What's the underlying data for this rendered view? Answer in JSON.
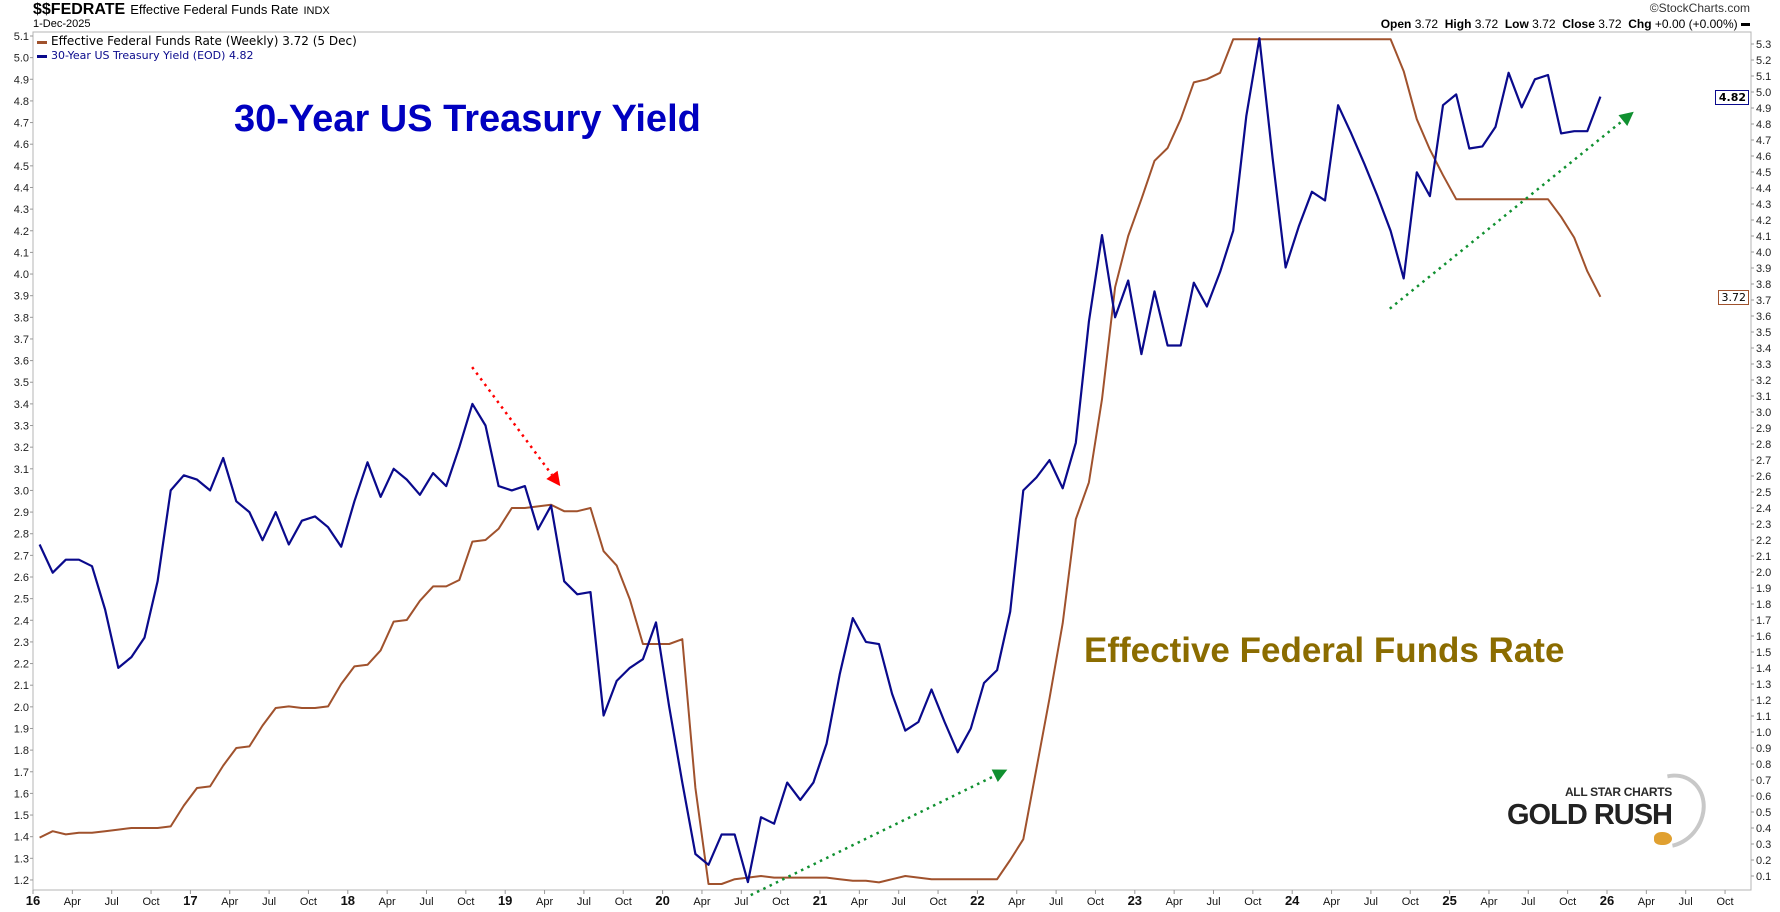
{
  "header": {
    "symbol": "$$FEDRATE",
    "name": "Effective Federal Funds Rate",
    "exchange": "INDX",
    "date": "1-Dec-2025",
    "copyright": "©StockCharts.com",
    "ohlc": {
      "open_label": "Open",
      "open": "3.72",
      "high_label": "High",
      "high": "3.72",
      "low_label": "Low",
      "low": "3.72",
      "close_label": "Close",
      "close": "3.72",
      "chg_label": "Chg",
      "chg": "+0.00 (+0.00%)"
    }
  },
  "legend": [
    {
      "label": "Effective Federal Funds Rate (Weekly) 3.72 (5 Dec)",
      "color": "#a0522d"
    },
    {
      "label": "30-Year US Treasury Yield (EOD) 4.82",
      "color": "#0a0a8c"
    }
  ],
  "markers": {
    "yield_last": "4.82",
    "fed_last": "3.72"
  },
  "annotations": {
    "title": "30-Year US Treasury Yield",
    "fed_label": "Effective Federal Funds Rate"
  },
  "logo": {
    "line1": "ALL STAR CHARTS",
    "line2": "GOLD RUSH"
  },
  "chart_data": {
    "type": "line",
    "x_start": "2016-01",
    "x_step": "month",
    "x_range": [
      2016.0,
      2026.83
    ],
    "x_tick_labels": [
      "16",
      "Apr",
      "Jul",
      "Oct",
      "17",
      "Apr",
      "Jul",
      "Oct",
      "18",
      "Apr",
      "Jul",
      "Oct",
      "19",
      "Apr",
      "Jul",
      "Oct",
      "20",
      "Apr",
      "Jul",
      "Oct",
      "21",
      "Apr",
      "Jul",
      "Oct",
      "22",
      "Apr",
      "Jul",
      "Oct",
      "23",
      "Apr",
      "Jul",
      "Oct",
      "24",
      "Apr",
      "Jul",
      "Oct",
      "25",
      "Apr",
      "Jul",
      "Oct",
      "26",
      "Apr",
      "Jul",
      "Oct"
    ],
    "left_axis": {
      "min": 1.2,
      "max": 5.1,
      "step": 0.1
    },
    "right_axis": {
      "min": 0.1,
      "max": 5.3,
      "step": 0.1
    },
    "grid": false,
    "legend_position": "top-left",
    "series": [
      {
        "name": "Effective Federal Funds Rate (Weekly)",
        "axis": "right",
        "color": "#a0522d",
        "values": [
          0.34,
          0.38,
          0.36,
          0.37,
          0.37,
          0.38,
          0.39,
          0.4,
          0.4,
          0.4,
          0.41,
          0.54,
          0.65,
          0.66,
          0.79,
          0.9,
          0.91,
          1.04,
          1.15,
          1.16,
          1.15,
          1.15,
          1.16,
          1.3,
          1.41,
          1.42,
          1.51,
          1.69,
          1.7,
          1.82,
          1.91,
          1.91,
          1.95,
          2.19,
          2.2,
          2.27,
          2.4,
          2.4,
          2.41,
          2.42,
          2.38,
          2.38,
          2.4,
          2.13,
          2.04,
          1.83,
          1.55,
          1.55,
          1.55,
          1.58,
          0.65,
          0.05,
          0.05,
          0.08,
          0.09,
          0.1,
          0.09,
          0.09,
          0.09,
          0.09,
          0.09,
          0.08,
          0.07,
          0.07,
          0.06,
          0.08,
          0.1,
          0.09,
          0.08,
          0.08,
          0.08,
          0.08,
          0.08,
          0.08,
          0.2,
          0.33,
          0.77,
          1.21,
          1.68,
          2.33,
          2.56,
          3.08,
          3.78,
          4.1,
          4.33,
          4.57,
          4.65,
          4.83,
          5.06,
          5.08,
          5.12,
          5.33,
          5.33,
          5.33,
          5.33,
          5.33,
          5.33,
          5.33,
          5.33,
          5.33,
          5.33,
          5.33,
          5.33,
          5.33,
          5.13,
          4.83,
          4.64,
          4.48,
          4.33,
          4.33,
          4.33,
          4.33,
          4.33,
          4.33,
          4.33,
          4.33,
          4.22,
          4.09,
          3.88,
          3.72
        ]
      },
      {
        "name": "30-Year US Treasury Yield (EOD)",
        "axis": "left",
        "color": "#0a0a8c",
        "values": [
          2.75,
          2.62,
          2.68,
          2.68,
          2.65,
          2.45,
          2.18,
          2.23,
          2.32,
          2.58,
          3.0,
          3.07,
          3.05,
          3.0,
          3.15,
          2.95,
          2.9,
          2.77,
          2.9,
          2.75,
          2.86,
          2.88,
          2.83,
          2.74,
          2.95,
          3.13,
          2.97,
          3.1,
          3.05,
          2.98,
          3.08,
          3.02,
          3.2,
          3.4,
          3.3,
          3.02,
          3.0,
          3.02,
          2.82,
          2.93,
          2.58,
          2.52,
          2.53,
          1.96,
          2.12,
          2.18,
          2.22,
          2.39,
          2.0,
          1.65,
          1.32,
          1.27,
          1.41,
          1.41,
          1.19,
          1.49,
          1.46,
          1.65,
          1.57,
          1.65,
          1.83,
          2.15,
          2.41,
          2.3,
          2.29,
          2.06,
          1.89,
          1.93,
          2.08,
          1.93,
          1.79,
          1.9,
          2.11,
          2.17,
          2.44,
          3.0,
          3.06,
          3.14,
          3.01,
          3.22,
          3.78,
          4.18,
          3.8,
          3.97,
          3.63,
          3.92,
          3.67,
          3.67,
          3.96,
          3.85,
          4.01,
          4.2,
          4.73,
          5.09,
          4.54,
          4.03,
          4.22,
          4.38,
          4.34,
          4.78,
          4.65,
          4.51,
          4.36,
          4.2,
          3.98,
          4.47,
          4.36,
          4.78,
          4.83,
          4.58,
          4.59,
          4.68,
          4.93,
          4.77,
          4.9,
          4.92,
          4.65,
          4.66,
          4.66,
          4.82
        ]
      }
    ],
    "arrows": [
      {
        "name": "red-down-arrow",
        "color": "#ff0000",
        "axis": "left",
        "from": [
          2018.79,
          3.57
        ],
        "to": [
          2019.35,
          3.02
        ]
      },
      {
        "name": "green-up-arrow-2020",
        "color": "#109030",
        "axis": "left",
        "from": [
          2020.56,
          1.13
        ],
        "to": [
          2022.19,
          1.71
        ]
      },
      {
        "name": "green-up-arrow-2024",
        "color": "#109030",
        "axis": "left",
        "from": [
          2024.62,
          3.84
        ],
        "to": [
          2026.17,
          4.75
        ]
      }
    ]
  }
}
